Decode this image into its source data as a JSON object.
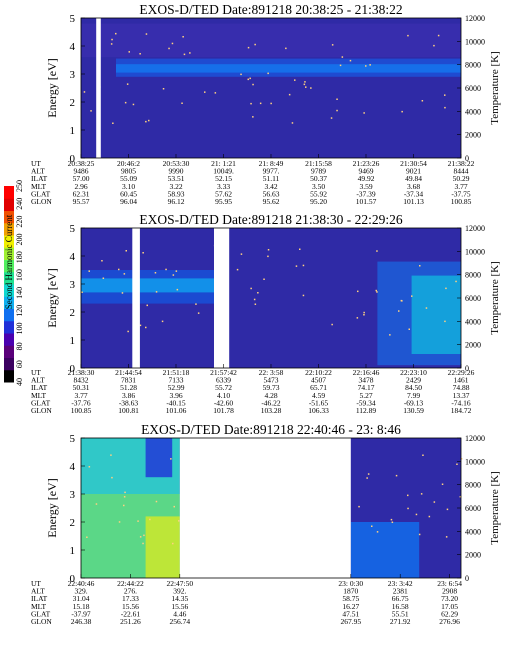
{
  "colorbar": {
    "label": "Second Harmonic Current",
    "ticks": [
      "40",
      "60",
      "80",
      "100",
      "120",
      "140",
      "160",
      "180",
      "200",
      "220",
      "240",
      "250"
    ],
    "colors": [
      "#000000",
      "#3b0060",
      "#5a007a",
      "#4a00b0",
      "#2030d8",
      "#1070f0",
      "#10b0f0",
      "#10d8d0",
      "#20e090",
      "#50f060",
      "#a0f030",
      "#f0f000",
      "#f0a000",
      "#f05000",
      "#e00000",
      "#ff0000"
    ]
  },
  "chart_data": [
    {
      "type": "heatmap",
      "title": "EXOS-D/TED",
      "date": "Date:891218",
      "time_range": "20:38:25 - 21:38:22",
      "ylabel": "Energy [eV]",
      "ylim": [
        0,
        5
      ],
      "yticks": [
        "0",
        "1",
        "2",
        "3",
        "4",
        "5"
      ],
      "y2label": "Temperature [K]",
      "y2lim": [
        0,
        12000
      ],
      "y2ticks": [
        "0",
        "2000",
        "4000",
        "6000",
        "8000",
        "10000",
        "12000"
      ],
      "row_labels": [
        "UT",
        "ALT",
        "ILAT",
        "MLT",
        "GLAT",
        "GLON"
      ],
      "columns": [
        [
          "20:38:25",
          "9486",
          "57.00",
          "2.96",
          "62.31",
          "95.57"
        ],
        [
          "20:46:2",
          "9805",
          "55.09",
          "3.10",
          "60.45",
          "96.04"
        ],
        [
          "20:53:30",
          "9990",
          "53.51",
          "3.22",
          "58.93",
          "96.12"
        ],
        [
          "21: 1:21",
          "10049.",
          "52.15",
          "3.33",
          "57.62",
          "95.95"
        ],
        [
          "21: 8:49",
          "9977.",
          "51.11",
          "3.42",
          "56.63",
          "95.62"
        ],
        [
          "21:15:58",
          "9789",
          "50.37",
          "3.50",
          "55.92",
          "95.20"
        ],
        [
          "21:23:26",
          "9469",
          "49.92",
          "3.59",
          "-37.39",
          "101.57"
        ],
        [
          "21:30:54",
          "9021",
          "49.84",
          "3.68",
          "-37.34",
          "101.13"
        ],
        [
          "21:38:22",
          "8444",
          "50.29",
          "3.77",
          "-37.75",
          "100.85"
        ]
      ],
      "gaps": [
        [
          0.04,
          0.052
        ]
      ]
    },
    {
      "type": "heatmap",
      "title": "EXOS-D/TED",
      "date": "Date:891218",
      "time_range": "21:38:30 - 22:29:26",
      "ylabel": "Energy [eV]",
      "ylim": [
        0,
        5
      ],
      "yticks": [
        "0",
        "1",
        "2",
        "3",
        "4",
        "5"
      ],
      "y2label": "Temperature [K]",
      "y2lim": [
        0,
        12000
      ],
      "y2ticks": [
        "0",
        "2000",
        "4000",
        "6000",
        "8000",
        "10000",
        "12000"
      ],
      "row_labels": [
        "UT",
        "ALT",
        "ILAT",
        "MLT",
        "GLAT",
        "GLON"
      ],
      "columns": [
        [
          "21:38:30",
          "8432",
          "50.31",
          "3.77",
          "-37.76",
          "100.85"
        ],
        [
          "21:44:54",
          "7831",
          "51.28",
          "3.86",
          "-38.63",
          "100.81"
        ],
        [
          "21:51:18",
          "7133",
          "52.99",
          "3.96",
          "-40.15",
          "101.06"
        ],
        [
          "21:57:42",
          "6339",
          "55.72",
          "4.10",
          "-42.60",
          "101.78"
        ],
        [
          "22: 3:58",
          "5473",
          "59.73",
          "4.28",
          "-46.22",
          "103.28"
        ],
        [
          "22:10:22",
          "4507",
          "65.71",
          "4.59",
          "-51.65",
          "106.33"
        ],
        [
          "22:16:46",
          "3478",
          "74.17",
          "5.27",
          "-59.34",
          "112.89"
        ],
        [
          "22:23:10",
          "2429",
          "84.50",
          "7.99",
          "-69.13",
          "130.59"
        ],
        [
          "22:29:26",
          "1461",
          "74.88",
          "13.37",
          "-74.16",
          "184.72"
        ]
      ],
      "gaps": [
        [
          0.135,
          0.155
        ],
        [
          0.35,
          0.39
        ]
      ]
    },
    {
      "type": "heatmap",
      "title": "EXOS-D/TED",
      "date": "Date:891218",
      "time_range": "22:40:46 - 23: 8:46",
      "ylabel": "Energy [eV]",
      "ylim": [
        0,
        5
      ],
      "yticks": [
        "0",
        "1",
        "2",
        "3",
        "4",
        "5"
      ],
      "y2label": "Temperature [K]",
      "y2lim": [
        0,
        12000
      ],
      "y2ticks": [
        "0",
        "2000",
        "4000",
        "6000",
        "8000",
        "10000",
        "12000"
      ],
      "row_labels": [
        "UT",
        "ALT",
        "ILAT",
        "MLT",
        "GLAT",
        "GLON"
      ],
      "columns": [
        [
          "22:40:46",
          "329.",
          "31.04",
          "15.18",
          "-37.97",
          "246.38"
        ],
        [
          "22:44:22",
          "276.",
          "17.33",
          "15.56",
          "-22.61",
          "251.26"
        ],
        [
          "22:47:50",
          "392.",
          "14.35",
          "15.56",
          "4.46",
          "256.74"
        ],
        [
          "23: 0:30",
          "1870",
          "58.75",
          "16.27",
          "47.51",
          "267.95"
        ],
        [
          "23: 3:42",
          "2381",
          "66.75",
          "16.58",
          "55.51",
          "271.92"
        ],
        [
          "23: 6:54",
          "2908",
          "73.20",
          "17.05",
          "62.29",
          "276.96"
        ]
      ],
      "gaps": [
        [
          0.26,
          0.71
        ]
      ]
    }
  ]
}
